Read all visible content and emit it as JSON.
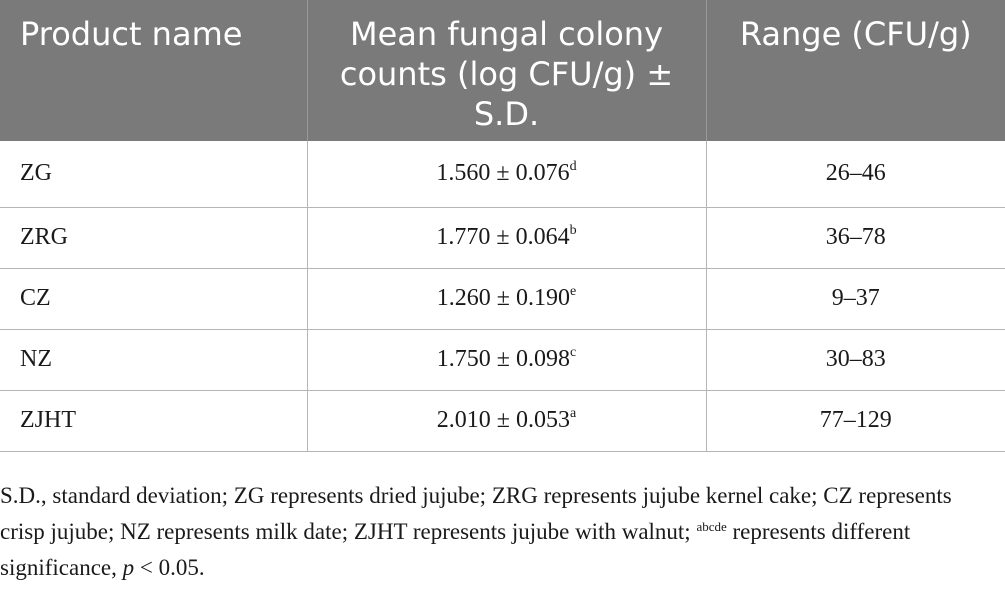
{
  "table": {
    "headers": [
      "Product name",
      "Mean fungal colony counts (log CFU/g) ± S.D.",
      "Range (CFU/g)"
    ],
    "rows": [
      {
        "name": "ZG",
        "mean": "1.560 ± 0.076",
        "sig": "d",
        "range": "26–46"
      },
      {
        "name": "ZRG",
        "mean": "1.770 ± 0.064",
        "sig": "b",
        "range": "36–78"
      },
      {
        "name": "CZ",
        "mean": "1.260 ± 0.190",
        "sig": "e",
        "range": "9–37"
      },
      {
        "name": "NZ",
        "mean": "1.750 ± 0.098",
        "sig": "c",
        "range": "30–83"
      },
      {
        "name": "ZJHT",
        "mean": "2.010 ± 0.053",
        "sig": "a",
        "range": "77–129"
      }
    ]
  },
  "footnote": {
    "part1": "S.D., standard deviation; ZG represents dried jujube; ZRG represents jujube kernel cake; CZ represents crisp jujube; NZ represents milk date; ZJHT represents jujube with walnut; ",
    "sig_letters": "abcde",
    "part2": " represents different significance, ",
    "p": "p",
    "part3": " < 0.05."
  }
}
